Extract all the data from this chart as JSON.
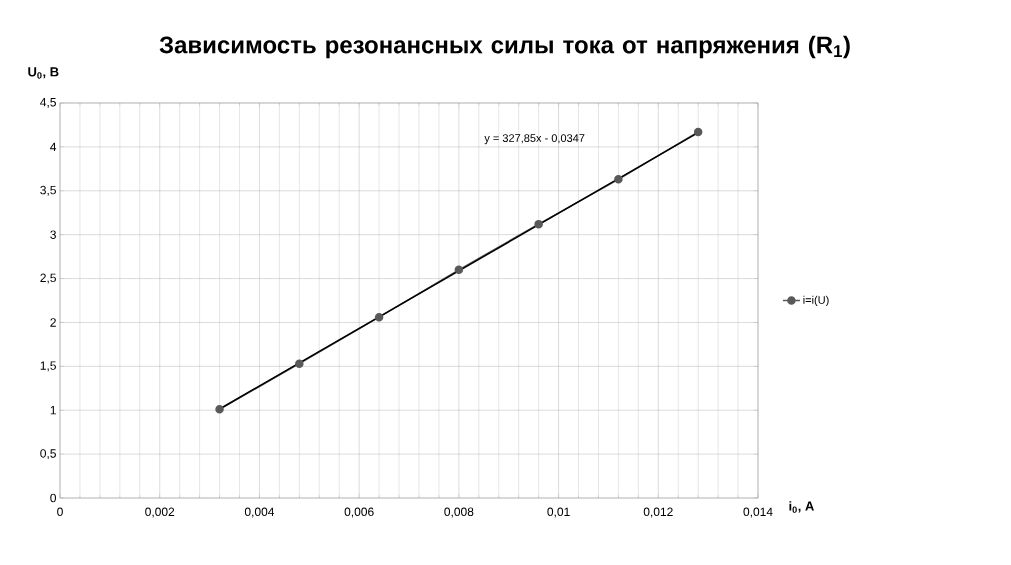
{
  "chart_data": {
    "type": "line",
    "title": "Зависимость резонансных силы тока от  напряжения (R$_{1}$)",
    "xlabel": "i$_{0}$, А",
    "ylabel": "U$_{0}$, В",
    "x": [
      0.0032,
      0.0048,
      0.0064,
      0.008,
      0.0096,
      0.0112,
      0.0128
    ],
    "series": [
      {
        "name": "i=i(U)",
        "color": "#595959",
        "values": [
          1.01,
          1.53,
          2.06,
          2.6,
          3.12,
          3.63,
          4.17
        ],
        "marker": "circle"
      },
      {
        "type": "line",
        "color": "#000000",
        "x": [
          0.0032,
          0.0128
        ],
        "values": [
          1.014,
          4.162
        ],
        "marker": "none"
      }
    ],
    "annotations": [
      "y = 327,85x - 0,0347"
    ],
    "xlim": [
      0,
      0.014
    ],
    "ylim": [
      0,
      4.5
    ],
    "xticks": [
      0,
      {
        "value": 0.002,
        "label": "0,002"
      },
      {
        "value": 0.004,
        "label": "0,004"
      },
      {
        "value": 0.006,
        "label": "0,006"
      },
      {
        "value": 0.008,
        "label": "0,008"
      },
      {
        "value": 0.01,
        "label": "0,01"
      },
      {
        "value": 0.012,
        "label": "0,012"
      },
      {
        "value": 0.014,
        "label": "0,014"
      }
    ],
    "yticks": [
      0,
      {
        "value": 0.5,
        "label": "0,5"
      },
      1,
      {
        "value": 1.5,
        "label": "1,5"
      },
      2,
      {
        "value": 2.5,
        "label": "2,5"
      },
      3,
      {
        "value": 3.5,
        "label": "3,5"
      },
      4,
      {
        "value": 4.5,
        "label": "4,5"
      }
    ],
    "grid": true,
    "legend": "right"
  }
}
